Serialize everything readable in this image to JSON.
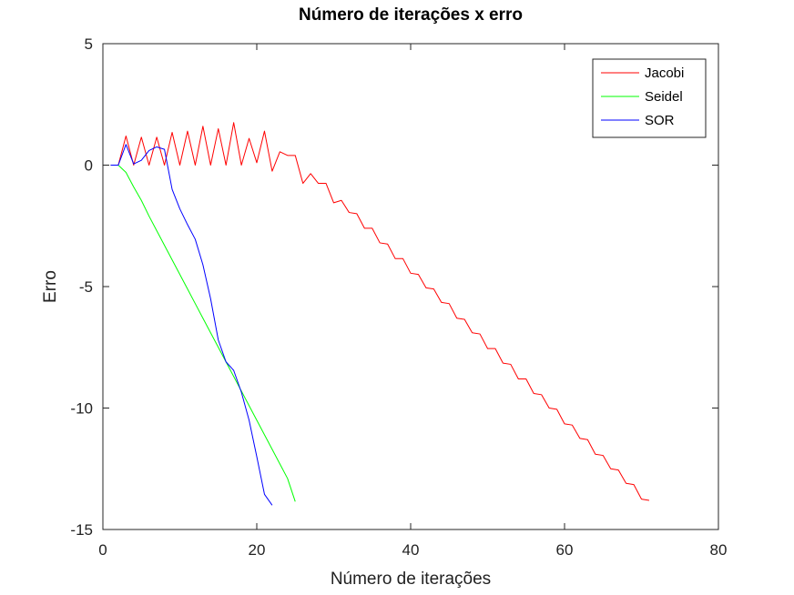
{
  "chart_data": {
    "type": "line",
    "title": "Número de iterações x erro",
    "xlabel": "Número de iterações",
    "ylabel": "Erro",
    "xlim": [
      0,
      80
    ],
    "ylim": [
      -15,
      5
    ],
    "xticks": [
      0,
      20,
      40,
      60,
      80
    ],
    "yticks": [
      5,
      0,
      -5,
      -10,
      -15
    ],
    "grid": false,
    "legend_position": "top-right",
    "series": [
      {
        "name": "Jacobi",
        "color": "#ff0000",
        "x": [
          1,
          2,
          3,
          4,
          5,
          6,
          7,
          8,
          9,
          10,
          11,
          12,
          13,
          14,
          15,
          16,
          17,
          18,
          19,
          20,
          21,
          22,
          23,
          24,
          25,
          26,
          27,
          28,
          29,
          30,
          31,
          32,
          33,
          34,
          35,
          36,
          37,
          38,
          39,
          40,
          41,
          42,
          43,
          44,
          45,
          46,
          47,
          48,
          49,
          50,
          51,
          52,
          53,
          54,
          55,
          56,
          57,
          58,
          59,
          60,
          61,
          62,
          63,
          64,
          65,
          66,
          67,
          68,
          69,
          70,
          71
        ],
        "y": [
          0,
          0,
          1.2,
          0,
          1.15,
          0,
          1.15,
          0,
          1.35,
          0,
          1.4,
          0,
          1.6,
          0,
          1.5,
          0,
          1.75,
          0,
          1.1,
          0.1,
          1.4,
          -0.25,
          0.55,
          0.4,
          0.4,
          -0.75,
          -0.35,
          -0.75,
          -0.75,
          -1.55,
          -1.45,
          -1.95,
          -2.0,
          -2.6,
          -2.6,
          -3.2,
          -3.25,
          -3.85,
          -3.85,
          -4.45,
          -4.5,
          -5.05,
          -5.1,
          -5.65,
          -5.7,
          -6.3,
          -6.35,
          -6.9,
          -6.95,
          -7.55,
          -7.55,
          -8.15,
          -8.2,
          -8.8,
          -8.8,
          -9.4,
          -9.45,
          -10.0,
          -10.05,
          -10.65,
          -10.7,
          -11.25,
          -11.3,
          -11.9,
          -11.95,
          -12.5,
          -12.55,
          -13.1,
          -13.15,
          -13.75,
          -13.8
        ]
      },
      {
        "name": "Seidel",
        "color": "#00ff00",
        "x": [
          1,
          2,
          3,
          4,
          5,
          6,
          7,
          8,
          9,
          10,
          11,
          12,
          13,
          14,
          15,
          16,
          17,
          18,
          19,
          20,
          21,
          22,
          23,
          24,
          25
        ],
        "y": [
          0,
          0,
          -0.3,
          -0.9,
          -1.45,
          -2.1,
          -2.7,
          -3.3,
          -3.9,
          -4.5,
          -5.1,
          -5.7,
          -6.3,
          -6.9,
          -7.5,
          -8.1,
          -8.7,
          -9.3,
          -9.9,
          -10.5,
          -11.1,
          -11.7,
          -12.3,
          -12.9,
          -13.85
        ]
      },
      {
        "name": "SOR",
        "color": "#0000ff",
        "x": [
          1,
          2,
          3,
          4,
          5,
          6,
          7,
          8,
          9,
          10,
          11,
          12,
          13,
          14,
          15,
          16,
          17,
          18,
          19,
          20,
          21,
          22
        ],
        "y": [
          0,
          0,
          0.85,
          0.05,
          0.2,
          0.6,
          0.75,
          0.65,
          -1.0,
          -1.8,
          -2.45,
          -3.05,
          -4.1,
          -5.5,
          -7.2,
          -8.1,
          -8.45,
          -9.35,
          -10.5,
          -12.0,
          -13.55,
          -14.0
        ]
      }
    ]
  }
}
